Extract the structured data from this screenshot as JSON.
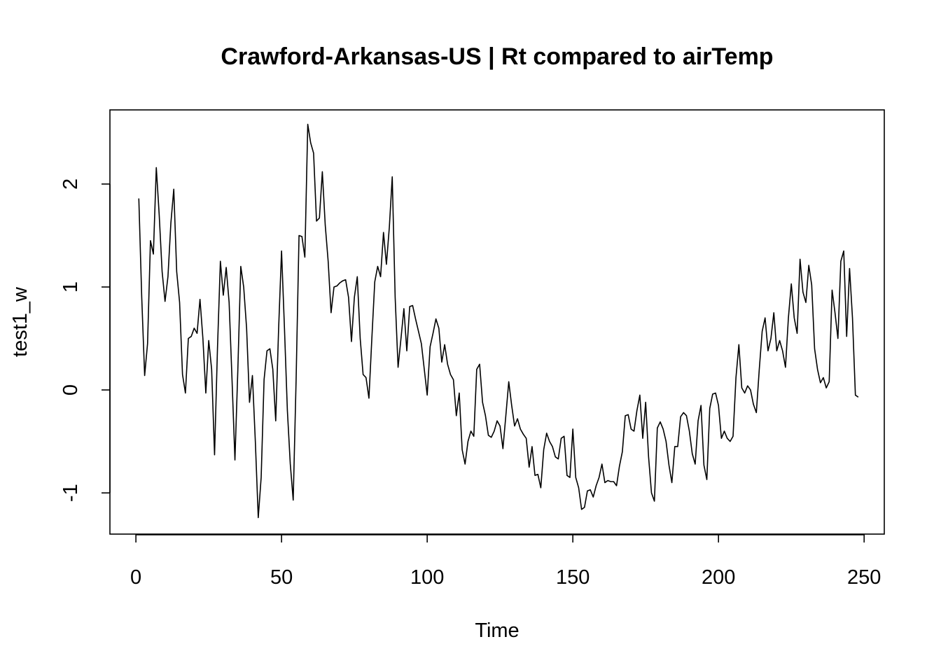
{
  "chart_data": {
    "type": "line",
    "title": "Crawford-Arkansas-US | Rt compared to airTemp",
    "xlabel": "Time",
    "ylabel": "test1_w",
    "xlim": [
      -8.92,
      256.92
    ],
    "ylim": [
      -1.4,
      2.72
    ],
    "xticks": [
      0,
      50,
      100,
      150,
      200,
      250
    ],
    "yticks": [
      -1,
      0,
      1,
      2
    ],
    "grid": false,
    "legend": "none",
    "line_color": "#000000",
    "series": [
      {
        "x": [
          1,
          2,
          3,
          4,
          5,
          6,
          7,
          8,
          9,
          10,
          11,
          12,
          13,
          14,
          15,
          16,
          17,
          18,
          19,
          20,
          21,
          22,
          23,
          24,
          25,
          26,
          27,
          28,
          29,
          30,
          31,
          32,
          33,
          34,
          35,
          36,
          37,
          38,
          39,
          40,
          41,
          42,
          43,
          44,
          45,
          46,
          47,
          48,
          49,
          50,
          51,
          52,
          53,
          54,
          55,
          56,
          57,
          58,
          59,
          60,
          61,
          62,
          63,
          64,
          65,
          66,
          67,
          68,
          69,
          70,
          71,
          72,
          73,
          74,
          75,
          76,
          77,
          78,
          79,
          80,
          81,
          82,
          83,
          84,
          85,
          86,
          87,
          88,
          89,
          90,
          91,
          92,
          93,
          94,
          95,
          96,
          97,
          98,
          99,
          100,
          101,
          102,
          103,
          104,
          105,
          106,
          107,
          108,
          109,
          110,
          111,
          112,
          113,
          114,
          115,
          116,
          117,
          118,
          119,
          120,
          121,
          122,
          123,
          124,
          125,
          126,
          127,
          128,
          129,
          130,
          131,
          132,
          133,
          134,
          135,
          136,
          137,
          138,
          139,
          140,
          141,
          142,
          143,
          144,
          145,
          146,
          147,
          148,
          149,
          150,
          151,
          152,
          153,
          154,
          155,
          156,
          157,
          158,
          159,
          160,
          161,
          162,
          163,
          164,
          165,
          166,
          167,
          168,
          169,
          170,
          171,
          172,
          173,
          174,
          175,
          176,
          177,
          178,
          179,
          180,
          181,
          182,
          183,
          184,
          185,
          186,
          187,
          188,
          189,
          190,
          191,
          192,
          193,
          194,
          195,
          196,
          197,
          198,
          199,
          200,
          201,
          202,
          203,
          204,
          205,
          206,
          207,
          208,
          209,
          210,
          211,
          212,
          213,
          214,
          215,
          216,
          217,
          218,
          219,
          220,
          221,
          222,
          223,
          224,
          225,
          226,
          227,
          228,
          229,
          230,
          231,
          232,
          233,
          234,
          235,
          236,
          237,
          238,
          239,
          240,
          241,
          242,
          243,
          244,
          245,
          246,
          247,
          248
        ],
        "values": [
          1.86,
          0.9,
          0.14,
          0.45,
          1.45,
          1.32,
          2.16,
          1.7,
          1.15,
          0.86,
          1.1,
          1.62,
          1.95,
          1.15,
          0.85,
          0.15,
          -0.03,
          0.5,
          0.52,
          0.6,
          0.55,
          0.88,
          0.5,
          -0.03,
          0.48,
          0.2,
          -0.63,
          0.4,
          1.25,
          0.92,
          1.19,
          0.85,
          0.1,
          -0.68,
          0.2,
          1.2,
          1.0,
          0.6,
          -0.12,
          0.14,
          -0.5,
          -1.24,
          -0.85,
          0.1,
          0.38,
          0.4,
          0.2,
          -0.3,
          0.6,
          1.35,
          0.6,
          -0.2,
          -0.72,
          -1.07,
          0.1,
          1.5,
          1.49,
          1.29,
          2.58,
          2.4,
          2.3,
          1.64,
          1.67,
          2.12,
          1.6,
          1.25,
          0.75,
          1.0,
          1.01,
          1.04,
          1.06,
          1.07,
          0.9,
          0.47,
          0.9,
          1.1,
          0.5,
          0.15,
          0.12,
          -0.08,
          0.5,
          1.05,
          1.2,
          1.1,
          1.53,
          1.22,
          1.58,
          2.07,
          0.9,
          0.22,
          0.5,
          0.79,
          0.38,
          0.81,
          0.82,
          0.69,
          0.57,
          0.45,
          0.2,
          -0.05,
          0.42,
          0.55,
          0.69,
          0.6,
          0.27,
          0.44,
          0.25,
          0.15,
          0.1,
          -0.25,
          -0.03,
          -0.58,
          -0.72,
          -0.5,
          -0.4,
          -0.45,
          0.2,
          0.25,
          -0.12,
          -0.25,
          -0.44,
          -0.46,
          -0.4,
          -0.3,
          -0.35,
          -0.57,
          -0.25,
          0.08,
          -0.15,
          -0.35,
          -0.28,
          -0.38,
          -0.43,
          -0.47,
          -0.75,
          -0.55,
          -0.83,
          -0.82,
          -0.95,
          -0.58,
          -0.42,
          -0.5,
          -0.55,
          -0.65,
          -0.67,
          -0.47,
          -0.45,
          -0.83,
          -0.85,
          -0.38,
          -0.85,
          -0.95,
          -1.16,
          -1.14,
          -0.98,
          -0.97,
          -1.04,
          -0.93,
          -0.85,
          -0.72,
          -0.9,
          -0.88,
          -0.89,
          -0.89,
          -0.93,
          -0.74,
          -0.6,
          -0.25,
          -0.24,
          -0.38,
          -0.4,
          -0.2,
          -0.05,
          -0.47,
          -0.12,
          -0.65,
          -1.0,
          -1.08,
          -0.37,
          -0.31,
          -0.38,
          -0.5,
          -0.73,
          -0.9,
          -0.55,
          -0.55,
          -0.26,
          -0.22,
          -0.25,
          -0.4,
          -0.62,
          -0.72,
          -0.3,
          -0.15,
          -0.73,
          -0.87,
          -0.18,
          -0.04,
          -0.03,
          -0.15,
          -0.47,
          -0.4,
          -0.47,
          -0.5,
          -0.45,
          0.12,
          0.44,
          0.02,
          -0.03,
          0.04,
          0.0,
          -0.14,
          -0.22,
          0.2,
          0.57,
          0.7,
          0.38,
          0.5,
          0.75,
          0.38,
          0.48,
          0.38,
          0.22,
          0.7,
          1.03,
          0.7,
          0.55,
          1.27,
          0.95,
          0.85,
          1.21,
          1.02,
          0.4,
          0.2,
          0.07,
          0.12,
          0.02,
          0.08,
          0.97,
          0.75,
          0.5,
          1.25,
          1.35,
          0.52,
          1.18,
          0.7,
          -0.05,
          -0.07
        ]
      }
    ]
  }
}
